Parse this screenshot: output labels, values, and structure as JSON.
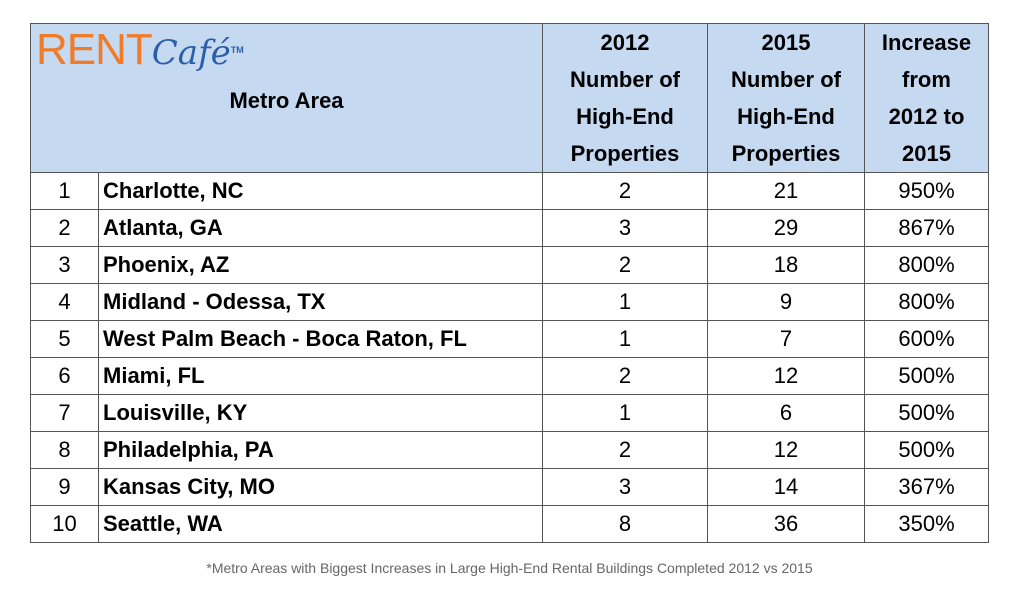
{
  "logo": {
    "rent": "RENT",
    "cafe": "Café",
    "tm": "TM"
  },
  "headers": {
    "metro_area": "Metro Area",
    "col2012": [
      "2012",
      "Number of",
      "High-End",
      "Properties"
    ],
    "col2015": [
      "2015",
      "Number of",
      "High-End",
      "Properties"
    ],
    "increase": [
      "Increase",
      "from",
      "2012 to",
      "2015"
    ]
  },
  "rows": [
    {
      "rank": "1",
      "metro": "Charlotte, NC",
      "y2012": "2",
      "y2015": "21",
      "increase": "950%"
    },
    {
      "rank": "2",
      "metro": "Atlanta, GA",
      "y2012": "3",
      "y2015": "29",
      "increase": "867%"
    },
    {
      "rank": "3",
      "metro": "Phoenix, AZ",
      "y2012": "2",
      "y2015": "18",
      "increase": "800%"
    },
    {
      "rank": "4",
      "metro": "Midland - Odessa, TX",
      "y2012": "1",
      "y2015": "9",
      "increase": "800%"
    },
    {
      "rank": "5",
      "metro": "West Palm Beach - Boca Raton, FL",
      "y2012": "1",
      "y2015": "7",
      "increase": "600%"
    },
    {
      "rank": "6",
      "metro": "Miami, FL",
      "y2012": "2",
      "y2015": "12",
      "increase": "500%"
    },
    {
      "rank": "7",
      "metro": "Louisville, KY",
      "y2012": "1",
      "y2015": "6",
      "increase": "500%"
    },
    {
      "rank": "8",
      "metro": "Philadelphia, PA",
      "y2012": "2",
      "y2015": "12",
      "increase": "500%"
    },
    {
      "rank": "9",
      "metro": "Kansas City, MO",
      "y2012": "3",
      "y2015": "14",
      "increase": "367%"
    },
    {
      "rank": "10",
      "metro": "Seattle, WA",
      "y2012": "8",
      "y2015": "36",
      "increase": "350%"
    }
  ],
  "footnote": "*Metro Areas with Biggest Increases in Large High-End Rental Buildings Completed 2012 vs 2015",
  "colors": {
    "header_bg": "#c5d9f1",
    "logo_orange": "#f07b28",
    "logo_blue": "#2b5fa8"
  }
}
